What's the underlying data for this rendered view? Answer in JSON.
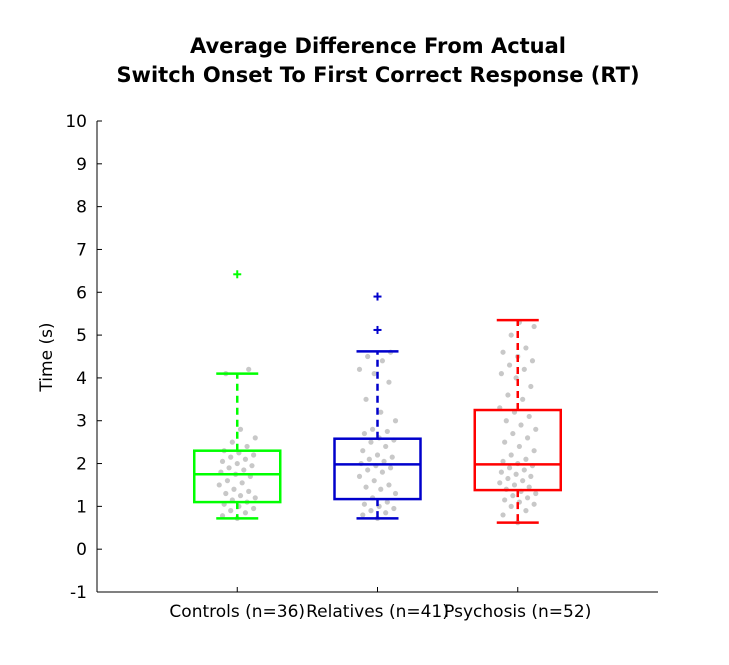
{
  "chart_data": {
    "type": "box",
    "title": [
      "Average Difference From Actual",
      "Switch Onset To First Correct Response (RT)"
    ],
    "xlabel": "",
    "ylabel": "Time (s)",
    "ylim": [
      -1,
      10
    ],
    "yticks": [
      -1,
      0,
      1,
      2,
      3,
      4,
      5,
      6,
      7,
      8,
      9,
      10
    ],
    "grid": false,
    "categories": [
      "Controls (n=36)",
      "Relatives (n=41)",
      "Psychosis (n=52)"
    ],
    "series": [
      {
        "color": "#00ff00",
        "whisker_low": 0.72,
        "q1": 1.1,
        "median": 1.75,
        "q3": 2.3,
        "whisker_high": 4.1,
        "outliers": [
          6.42
        ],
        "points": [
          0.72,
          0.78,
          0.85,
          0.9,
          0.95,
          1.0,
          1.05,
          1.1,
          1.15,
          1.2,
          1.25,
          1.3,
          1.35,
          1.4,
          1.5,
          1.55,
          1.6,
          1.7,
          1.75,
          1.8,
          1.85,
          1.9,
          1.95,
          2.0,
          2.05,
          2.1,
          2.15,
          2.2,
          2.25,
          2.3,
          2.4,
          2.5,
          2.6,
          2.8,
          4.1,
          4.2
        ]
      },
      {
        "color": "#0000cc",
        "whisker_low": 0.72,
        "q1": 1.17,
        "median": 1.98,
        "q3": 2.58,
        "whisker_high": 4.62,
        "outliers": [
          5.12,
          5.9
        ],
        "points": [
          0.72,
          0.8,
          0.85,
          0.9,
          0.95,
          1.0,
          1.05,
          1.1,
          1.2,
          1.3,
          1.4,
          1.45,
          1.5,
          1.6,
          1.7,
          1.8,
          1.85,
          1.9,
          1.95,
          2.0,
          2.05,
          2.1,
          2.15,
          2.2,
          2.3,
          2.4,
          2.5,
          2.55,
          2.6,
          2.7,
          2.75,
          2.8,
          3.0,
          3.2,
          3.5,
          3.9,
          4.1,
          4.2,
          4.4,
          4.5,
          4.6
        ]
      },
      {
        "color": "#ff0000",
        "whisker_low": 0.62,
        "q1": 1.38,
        "median": 1.98,
        "q3": 3.25,
        "whisker_high": 5.35,
        "outliers": [],
        "points": [
          0.62,
          0.8,
          0.9,
          1.0,
          1.05,
          1.1,
          1.15,
          1.2,
          1.25,
          1.3,
          1.35,
          1.4,
          1.45,
          1.5,
          1.55,
          1.6,
          1.65,
          1.7,
          1.75,
          1.8,
          1.85,
          1.9,
          1.95,
          2.0,
          2.05,
          2.1,
          2.2,
          2.3,
          2.4,
          2.5,
          2.6,
          2.7,
          2.8,
          2.9,
          3.0,
          3.1,
          3.2,
          3.3,
          3.5,
          3.6,
          3.8,
          4.0,
          4.1,
          4.2,
          4.3,
          4.4,
          4.5,
          4.6,
          4.7,
          5.0,
          5.2,
          5.3
        ]
      }
    ]
  }
}
